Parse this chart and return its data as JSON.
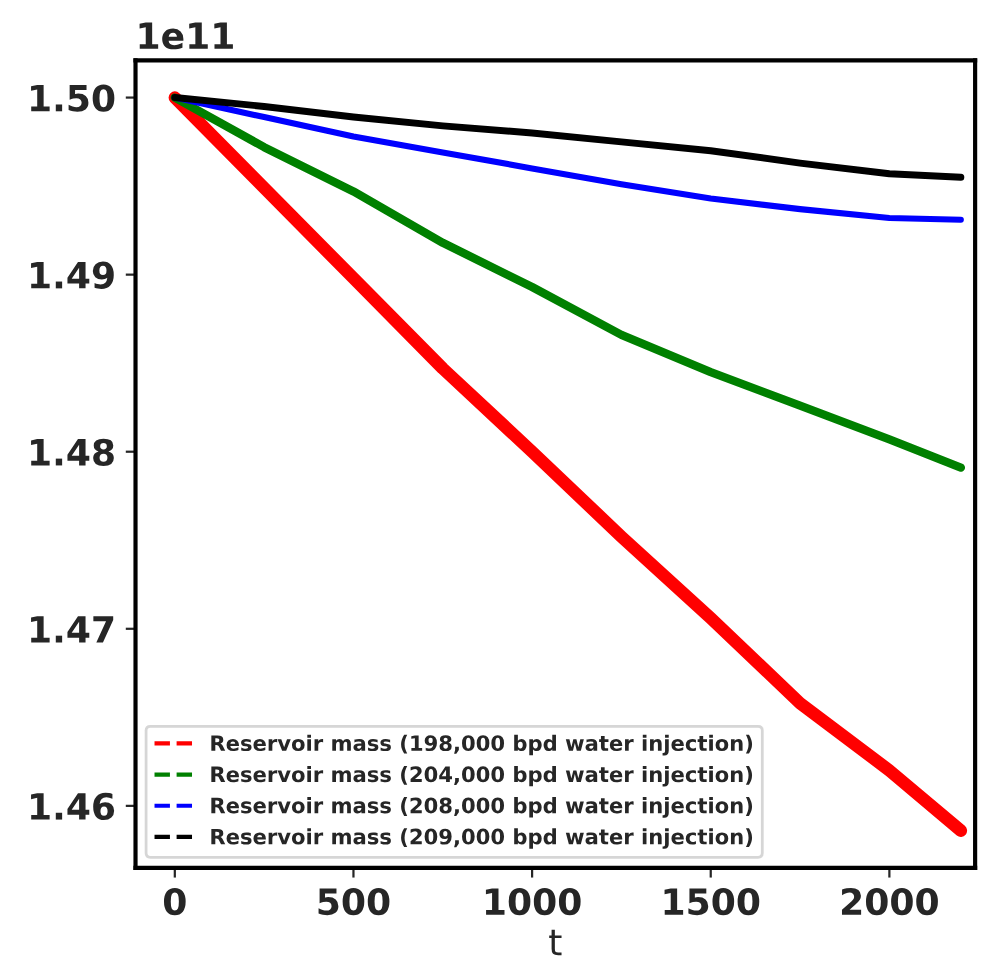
{
  "chart_data": {
    "type": "line",
    "xlabel": "t",
    "annotations": [
      "1e11"
    ],
    "x": [
      0,
      250,
      500,
      750,
      1000,
      1250,
      1500,
      1750,
      2000,
      2200
    ],
    "series": [
      {
        "name": "Reservoir mass (198,000 bpd water injection)",
        "color": "#ff0000",
        "values": [
          1.5,
          1.4949,
          1.4898,
          1.4847,
          1.48,
          1.4752,
          1.4706,
          1.4658,
          1.462,
          1.4586
        ]
      },
      {
        "name": "Reservoir mass (204,000 bpd water injection)",
        "color": "#008000",
        "values": [
          1.5,
          1.4972,
          1.4947,
          1.4918,
          1.4893,
          1.4866,
          1.4845,
          1.4826,
          1.4807,
          1.4791
        ]
      },
      {
        "name": "Reservoir mass (208,000 bpd water injection)",
        "color": "#0000ff",
        "values": [
          1.5,
          1.4989,
          1.4978,
          1.4969,
          1.496,
          1.4951,
          1.4943,
          1.4937,
          1.4932,
          1.4931
        ]
      },
      {
        "name": "Reservoir mass (209,000 bpd water injection)",
        "color": "#000000",
        "values": [
          1.5,
          1.4995,
          1.4989,
          1.4984,
          1.498,
          1.4975,
          1.497,
          1.4963,
          1.4957,
          1.4955
        ]
      }
    ],
    "xlim": [
      -110,
      2240
    ],
    "ylim": [
      1.4565,
      1.5021
    ],
    "xticks": [
      0,
      500,
      1000,
      1500,
      2000
    ],
    "yticks": [
      {
        "value": 1.46,
        "label": "1.46"
      },
      {
        "value": 1.47,
        "label": "1.47"
      },
      {
        "value": 1.48,
        "label": "1.48"
      },
      {
        "value": 1.49,
        "label": "1.49"
      },
      {
        "value": 1.5,
        "label": "1.50"
      }
    ],
    "legend": "bottom left",
    "grid": false,
    "line_style": "solid",
    "marker": "none"
  }
}
